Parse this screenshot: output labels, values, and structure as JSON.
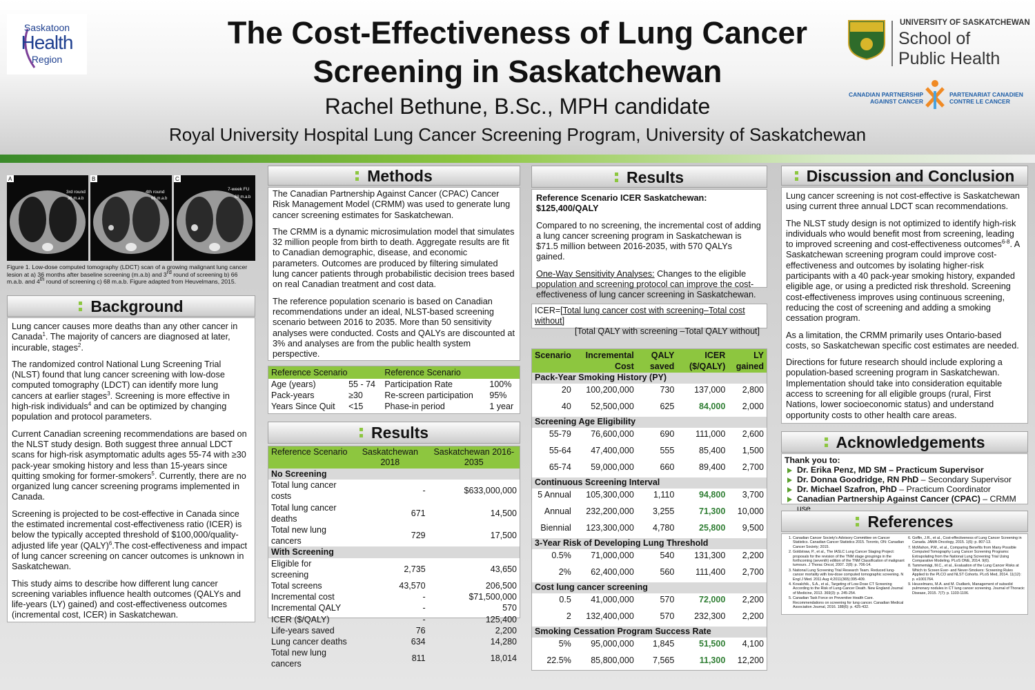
{
  "header": {
    "title": "The Cost-Effectiveness of Lung Cancer Screening in Saskatchewan",
    "author": "Rachel Bethune, B.Sc., MPH candidate",
    "affiliation": "Royal University Hospital Lung Cancer Screening Program, University of Saskatchewan"
  },
  "logos": {
    "health_region": [
      "Saskatoon",
      "Health",
      "Region"
    ],
    "university": "UNIVERSITY OF SASKATCHEWAN",
    "school": [
      "School of",
      "Public Health"
    ],
    "cpac_en": [
      "CANADIAN PARTNERSHIP",
      "AGAINST CANCER"
    ],
    "cpac_fr": [
      "PARTENARIAT CANADIEN",
      "CONTRE LE CANCER"
    ]
  },
  "figure": {
    "panels": [
      {
        "letter": "A",
        "round": "3rd round",
        "time": "36 m.a.b"
      },
      {
        "letter": "B",
        "round": "4th round",
        "time": "66 m.a.b"
      },
      {
        "letter": "C",
        "round": "7-week FU",
        "time": "68 m.a.b"
      }
    ],
    "caption": [
      "Figure 1. Low-dose computed tomography (LDCT) scan of a growing malignant lung cancer lesion at a) 36 months after baseline screening (m.a.b) and 3",
      {
        "sup": "rd"
      },
      " round of screening b) 66 m.a.b. and 4",
      {
        "sup": "th"
      },
      " round of screening  c) 68 m.a.b. Figure adapted from Heuvelmans, 2015."
    ]
  },
  "background": {
    "heading": "Background",
    "paragraphs": [
      [
        "Lung cancer causes more deaths than any other cancer in Canada",
        {
          "sup": "1"
        },
        ".  The majority of cancers are diagnosed at later, incurable, stages",
        {
          "sup": "2"
        },
        "."
      ],
      [
        "The randomized control National Lung Screening Trial (NLST) found that lung cancer screening with low-dose computed tomography (LDCT) can identify more lung cancers at earlier stages",
        {
          "sup": "3"
        },
        ". Screening is more effective in high-risk individuals",
        {
          "sup": "4"
        },
        " and can  be optimized by changing population and protocol parameters."
      ],
      [
        "Current Canadian screening recommendations are based on the NLST study design. Both suggest three annual LDCT scans for high-risk asymptomatic adults ages 55-74 with ≥30 pack-year smoking history and less than 15-years since quitting smoking for former-smokers",
        {
          "sup": "5"
        },
        ". Currently, there are no organized lung cancer screening programs implemented in Canada."
      ],
      [
        "Screening is projected to be cost-effective in Canada since the estimated incremental cost-effectiveness ratio (ICER) is below the typically accepted threshold of $100,000/quality-adjusted life year (QALY)",
        {
          "sup": "6"
        },
        ".The cost-effectiveness and impact of lung cancer screening on cancer outcomes is unknown  in Saskatchewan."
      ],
      "This study aims to describe how different lung cancer screening variables influence health outcomes (QALYs and life-years (LY) gained) and cost-effectiveness outcomes (incremental cost, ICER) in Saskatchewan."
    ]
  },
  "methods": {
    "heading": "Methods",
    "paragraphs": [
      "The Canadian Partnership Against Cancer (CPAC) Cancer Risk Management Model (CRMM) was used to generate lung cancer screening estimates for Saskatchewan.",
      "The CRMM is a dynamic microsimulation model that simulates 32 million people from birth to death. Aggregate results are fit to Canadian demographic, disease, and economic parameters. Outcomes are produced by filtering simulated lung cancer patients through probabilistic decision trees based on real Canadian treatment and cost data.",
      "The reference population scenario is based on Canadian recommendations under an ideal, NLST-based screening scenario between 2016 to 2035. More than 50 sensitivity analyses were conducted. Costs and QALYs are discounted at 3% and analyses are from the public health system perspective."
    ],
    "reference_table": {
      "header": [
        "Reference Scenario",
        "Reference Scenario"
      ],
      "rows": [
        [
          "Age (years)",
          "55 - 74",
          "Participation Rate",
          "100%"
        ],
        [
          "Pack-years",
          "≥30",
          "Re-screen participation",
          "95%"
        ],
        [
          "Years Since Quit",
          "<15",
          "Phase-in period",
          "1 year"
        ]
      ]
    }
  },
  "results_table": {
    "heading": "Results",
    "header": [
      "Reference Scenario",
      "Saskatchewan 2018",
      "Saskatchewan 2016-2035"
    ],
    "sections": [
      {
        "title": "No Screening",
        "rows": [
          [
            "Total lung cancer costs",
            "-",
            "$633,000,000"
          ],
          [
            "Total lung cancer deaths",
            "671",
            "14,500"
          ],
          [
            "Total new lung cancers",
            "729",
            "17,500"
          ]
        ]
      },
      {
        "title": "With Screening",
        "rows": [
          [
            "Eligible for screening",
            "2,735",
            "43,650"
          ],
          [
            "Total screens",
            "43,570",
            "206,500"
          ],
          [
            "Incremental cost",
            "-",
            "$71,500,000"
          ],
          [
            "Incremental QALY",
            "-",
            "570"
          ],
          [
            "ICER ($/QALY)",
            "-",
            "125,400"
          ],
          [
            "Life-years saved",
            "76",
            "2,200"
          ],
          [
            "Lung cancer deaths",
            "634",
            "14,280"
          ],
          [
            "Total new lung cancers",
            "811",
            "18,014"
          ]
        ]
      }
    ]
  },
  "results": {
    "heading": "Results",
    "paragraphs": [
      [
        {
          "b": "Reference Scenario ICER Saskatchewan: $125,400/QALY"
        }
      ],
      "Compared to no screening, the incremental cost of adding a lung cancer screening program in Saskatchewan is $71.5 million between 2016-2035, with 570 QALYs gained.",
      [
        {
          "u": "One-Way Sensitivity Analyses:"
        },
        " Changes to the eligible population and screening protocol can improve the cost-effectiveness of lung cancer screening in Saskatchewan."
      ]
    ],
    "icer_formula": {
      "lhs": "ICER=",
      "numerator": "[Total lung cancer cost with screening–Total cost without]",
      "denominator": "[Total QALY with screening –Total QALY without]"
    },
    "sensitivity_table": {
      "header": [
        "Scenario",
        "Incremental Cost",
        "QALY saved",
        "ICER ($/QALY)",
        "LY gained"
      ],
      "sections": [
        {
          "title": "Pack-Year Smoking History (PY)",
          "rows": [
            {
              "cells": [
                "20",
                "100,200,000",
                "730",
                "137,000",
                "2,800"
              ]
            },
            {
              "cells": [
                "40",
                "52,500,000",
                "625",
                "84,000",
                "2,000"
              ],
              "highlight": true
            }
          ]
        },
        {
          "title": "Screening Age Eligibility",
          "rows": [
            {
              "cells": [
                "55-79",
                "76,600,000",
                "690",
                "111,000",
                "2,600"
              ]
            },
            {
              "cells": [
                "55-64",
                "47,400,000",
                "555",
                "85,400",
                "1,500"
              ]
            },
            {
              "cells": [
                "65-74",
                "59,000,000",
                "660",
                "89,400",
                "2,700"
              ]
            }
          ]
        },
        {
          "title": "Continuous Screening Interval",
          "rows": [
            {
              "cells": [
                "5 Annual",
                "105,300,000",
                "1,110",
                "94,800",
                "3,700"
              ],
              "highlight": true
            },
            {
              "cells": [
                "Annual",
                "232,200,000",
                "3,255",
                "71,300",
                "10,000"
              ],
              "highlight": true
            },
            {
              "cells": [
                "Biennial",
                "123,300,000",
                "4,780",
                "25,800",
                "9,500"
              ],
              "highlight": true
            }
          ]
        },
        {
          "title": "3-Year Risk of Developing Lung Threshold",
          "rows": [
            {
              "cells": [
                "0.5%",
                "71,000,000",
                "540",
                "131,300",
                "2,200"
              ]
            },
            {
              "cells": [
                "2%",
                "62,400,000",
                "560",
                "111,400",
                "2,700"
              ]
            }
          ]
        },
        {
          "title": "Cost lung cancer screening",
          "rows": [
            {
              "cells": [
                "0.5",
                "41,000,000",
                "570",
                "72,000",
                "2,200"
              ],
              "highlight": true
            },
            {
              "cells": [
                "2",
                "132,400,000",
                "570",
                "232,300",
                "2,200"
              ]
            }
          ]
        },
        {
          "title": "Smoking Cessation Program Success Rate",
          "rows": [
            {
              "cells": [
                "5%",
                "95,000,000",
                "1,845",
                "51,500",
                "4,100"
              ],
              "highlight": true
            },
            {
              "cells": [
                "22.5%",
                "85,800,000",
                "7,565",
                "11,300",
                "12,200"
              ],
              "highlight": true
            }
          ]
        }
      ]
    }
  },
  "discussion": {
    "heading": "Discussion and Conclusion",
    "paragraphs": [
      "Lung cancer screening is not cost-effective is Saskatchewan using current three annual LDCT scan recommendations.",
      [
        "The NLST study design is not optimized to identify high-risk individuals who would benefit most from screening, leading to improved screening and cost-effectiveness outcomes",
        {
          "sup": "6-8"
        },
        ". A Saskatchewan screening program could improve cost-effectiveness and outcomes by isolating higher-risk participants with a 40 pack-year smoking history, expanded eligible age, or using a predicted risk threshold. Screening cost-effectiveness improves using continuous screening, reducing the cost of screening and adding a smoking cessation program."
      ],
      "As a limitation, the CRMM primarily uses Ontario-based costs, so Saskatchewan specific cost estimates are needed.",
      "Directions for future research should include exploring a population-based screening program in Saskatchewan. Implementation should take into consideration equitable access to screening for all eligible groups (rural, First Nations, lower socioeconomic status) and understand opportunity costs to other health care areas."
    ]
  },
  "acknowledgements": {
    "heading": "Acknowledgements",
    "intro": "Thank you to:",
    "items": [
      [
        {
          "b": "Dr. Erika Penz, MD SM – Practicum Supervisor"
        }
      ],
      [
        {
          "b": "Dr. Donna Goodridge, RN PhD"
        },
        " – Secondary Supervisor"
      ],
      [
        {
          "b": "Dr. Michael Szafron, PhD"
        },
        " – Practicum Coordinator"
      ],
      [
        {
          "b": "Canadian Partnership Against Cancer (CPAC)"
        },
        " – CRMM use"
      ]
    ]
  },
  "references": {
    "heading": "References",
    "items": [
      "Canadian Cancer Society's Advisory Committee on Cancer Statistics. Canadian Cancer Statistics 2015. Toronto, ON: Canadian Cancer Society; 2015.",
      "Goldstraw, P., et al., The IASLC Lung Cancer Staging Project: proposals for the revision of the TNM stage groupings in the forthcoming (seventh) edition of the TNM Classification of malignant tumours. J Thorac Oncol, 2007. 2(8): p. 706-14.",
      "National Lung Screening Trial Research Team. Reduced lung-cancer mortality with low-dose computed tomographic screening. N Engl J Med. 2011 Aug 4;2011(365):395-409.",
      "Kovalchik., S.A., et al., Targeting of Low-Dose CT Screening According to the Risk of Lung-Cancer Death. New England Journal of Medicine, 2013. 369(3): p. 245-254.",
      "Canadian Task Force on Preventive Health Care. Recommendations on screening for lung cancer. Canadian Medical Association Journal, 2016. 188(6): p. 425-432.",
      "Goffin, J.R., et al., Cost-effectiveness of Lung Cancer Screening in Canada. JAMA Oncology, 2015. 1(6): p. 807-13.",
      "McMahon, P.M., et al., Comparing Benefits from Many Possible Computed Tomography Lung Cancer Screening Programs: Extrapolating from the National Lung Screening Trial Using Comparative Modeling. PLoS ONE, 2014. 9(6).",
      "Tammemägi, M.C., et al., Evaluation of the Lung Cancer Risks at Which to Screen Ever- and Never-Smokers: Screening Rules Applied to the PLCO and NLST Cohorts. PLoS Med, 2014. 11(12): p. e1001764.",
      "Heuvelmans, M.A. and M. Oudkerk, Management of subsolid pulmonary nodules in CT lung cancer screening. Journal of Thoracic Disease, 2015. 7(7): p. 1103-1106."
    ]
  }
}
